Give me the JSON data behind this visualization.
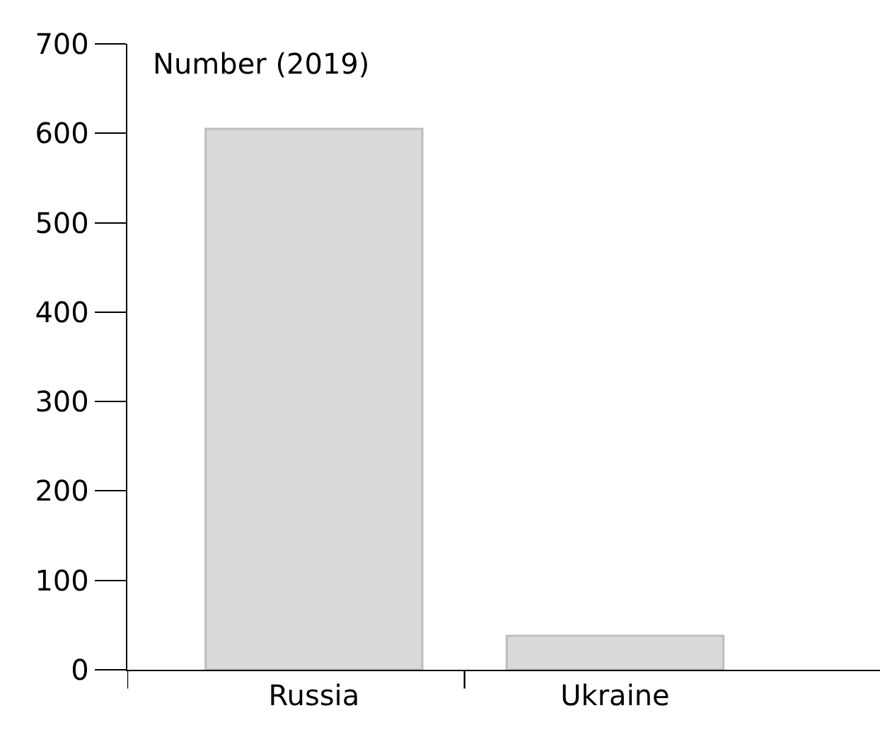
{
  "chart_data": {
    "type": "bar",
    "ylabel": "Number (2019)",
    "categories": [
      "Russia",
      "Ukraine"
    ],
    "values": [
      605,
      38
    ],
    "color": "#d9d9d9",
    "ylim": [
      0,
      700
    ],
    "yticks": [
      0,
      100,
      200,
      300,
      400,
      500,
      600,
      700
    ],
    "grid": false,
    "legend": false
  }
}
